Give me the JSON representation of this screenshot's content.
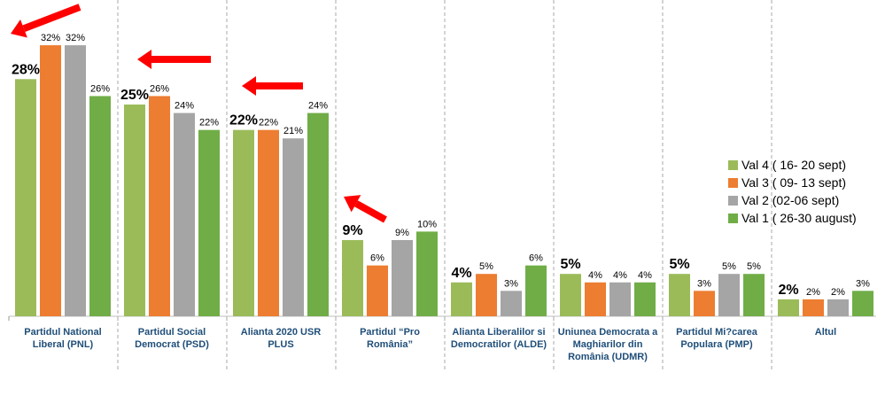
{
  "chart_data": {
    "type": "bar",
    "title": "",
    "xlabel": "",
    "ylabel": "",
    "ylim": [
      0,
      35
    ],
    "grid": false,
    "legend_position": "right",
    "categories": [
      "Partidul National Liberal (PNL)",
      "Partidul Social Democrat (PSD)",
      "Alianta 2020 USR PLUS",
      "Partidul “Pro România”",
      "Alianta Liberalilor si Democratilor (ALDE)",
      "Uniunea Democrata a Maghiarilor din România (UDMR)",
      "Partidul Mi?carea Populara (PMP)",
      "Altul"
    ],
    "series": [
      {
        "name": "Val 4 ( 16- 20 sept)",
        "color": "#9BBB59",
        "values": [
          28,
          25,
          22,
          9,
          4,
          5,
          5,
          2
        ]
      },
      {
        "name": "Val 3 ( 09- 13 sept)",
        "color": "#ED7D31",
        "values": [
          32,
          26,
          22,
          6,
          5,
          4,
          3,
          2
        ]
      },
      {
        "name": "Val 2 (02-06 sept)",
        "color": "#A5A5A5",
        "values": [
          32,
          24,
          21,
          9,
          3,
          4,
          5,
          2
        ]
      },
      {
        "name": "Val 1 ( 26-30 august)",
        "color": "#70AD47",
        "values": [
          26,
          22,
          24,
          10,
          6,
          4,
          5,
          3
        ]
      }
    ],
    "value_suffix": "%",
    "annotations": "red arrows pointing to Val 4 values for PNL, PSD, USR PLUS, Pro România"
  }
}
